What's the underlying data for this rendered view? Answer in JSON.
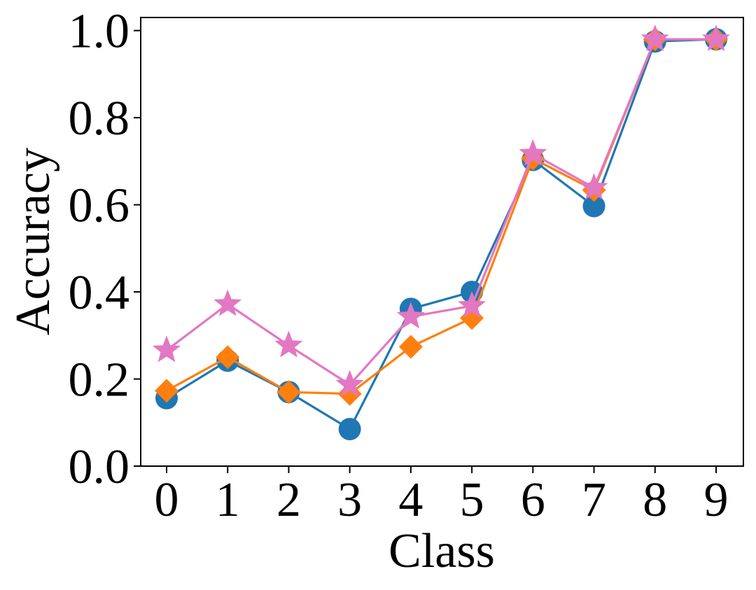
{
  "chart_data": {
    "type": "line",
    "xlabel": "Class",
    "ylabel": "Accuracy",
    "categories": [
      "0",
      "1",
      "2",
      "3",
      "4",
      "5",
      "6",
      "7",
      "8",
      "9"
    ],
    "ylim": [
      0,
      1.03
    ],
    "yticks": [
      "0.0",
      "0.2",
      "0.4",
      "0.6",
      "0.8",
      "1.0"
    ],
    "grid": false,
    "legend": "none",
    "series": [
      {
        "color": "#1f77b4",
        "marker": "circle",
        "values": [
          0.156,
          0.242,
          0.17,
          0.085,
          0.361,
          0.4,
          0.703,
          0.597,
          0.975,
          0.98
        ]
      },
      {
        "color": "#ff7f0e",
        "marker": "diamond",
        "values": [
          0.173,
          0.25,
          0.17,
          0.166,
          0.274,
          0.34,
          0.706,
          0.634,
          0.98,
          0.98
        ]
      },
      {
        "color": "#e377c2",
        "marker": "star",
        "values": [
          0.266,
          0.372,
          0.277,
          0.187,
          0.343,
          0.368,
          0.717,
          0.639,
          0.98,
          0.98
        ]
      }
    ]
  }
}
